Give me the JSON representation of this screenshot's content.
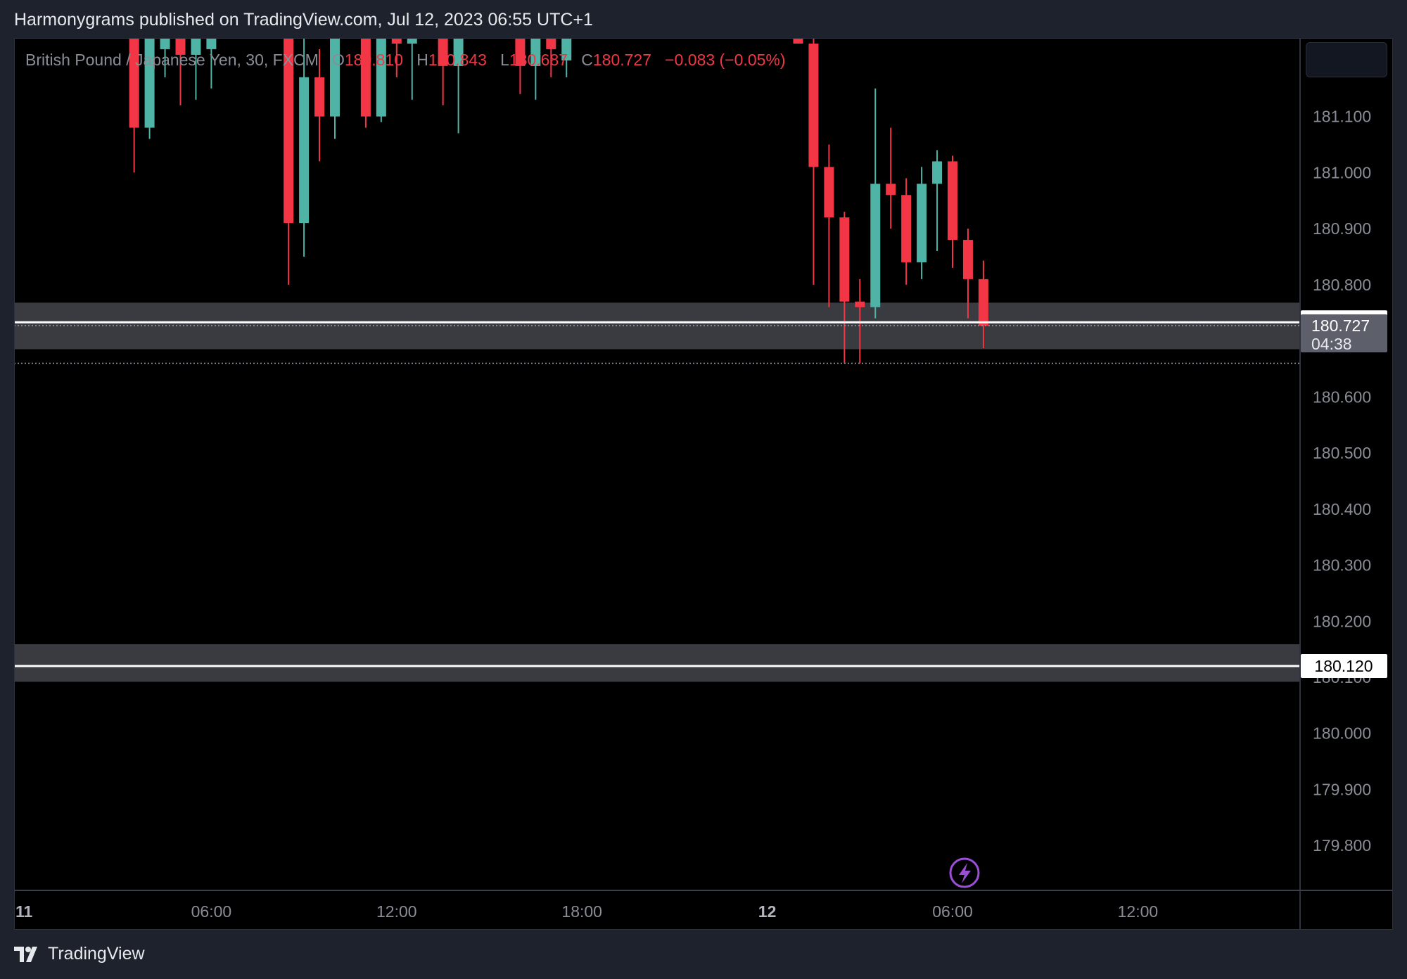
{
  "header": {
    "publisher_line": "Harmonygrams published on TradingView.com, Jul 12, 2023 06:55 UTC+1"
  },
  "legend": {
    "symbol": "British Pound / Japanese Yen, 30, FXCM",
    "open_label": "O",
    "open": "180.810",
    "high_label": "H",
    "high": "180.843",
    "low_label": "L",
    "low": "180.687",
    "close_label": "C",
    "close": "180.727",
    "change": "−0.083 (−0.05%)"
  },
  "footer": {
    "brand": "TradingView"
  },
  "colors": {
    "up": "#4fb3a6",
    "down": "#f23645",
    "zone": "#3a3b40",
    "background": "#000000",
    "axis_text": "#8a8d96"
  },
  "chart_data": {
    "type": "candlestick",
    "symbol": "GBPJPY",
    "timeframe": "30",
    "ylim": [
      179.72,
      181.24
    ],
    "y_ticks": [
      "181.100",
      "181.000",
      "180.900",
      "180.800",
      "180.600",
      "180.500",
      "180.400",
      "180.300",
      "180.200",
      "180.100",
      "180.000",
      "179.900",
      "179.800"
    ],
    "x_ticks": [
      {
        "label": "11",
        "bold": true,
        "index": 0
      },
      {
        "label": "06:00",
        "bold": false,
        "index": 12
      },
      {
        "label": "12:00",
        "bold": false,
        "index": 24
      },
      {
        "label": "18:00",
        "bold": false,
        "index": 36
      },
      {
        "label": "12",
        "bold": true,
        "index": 48
      },
      {
        "label": "06:00",
        "bold": false,
        "index": 60
      },
      {
        "label": "12:00",
        "bold": false,
        "index": 72
      }
    ],
    "candles": [
      {
        "i": 7,
        "o": 181.24,
        "h": 181.26,
        "l": 181.0,
        "c": 181.08
      },
      {
        "i": 8,
        "o": 181.08,
        "h": 181.29,
        "l": 181.06,
        "c": 181.25
      },
      {
        "i": 9,
        "o": 181.22,
        "h": 181.28,
        "l": 181.17,
        "c": 181.25
      },
      {
        "i": 10,
        "o": 181.25,
        "h": 181.29,
        "l": 181.12,
        "c": 181.21
      },
      {
        "i": 11,
        "o": 181.21,
        "h": 181.27,
        "l": 181.13,
        "c": 181.24
      },
      {
        "i": 12,
        "o": 181.22,
        "h": 181.27,
        "l": 181.15,
        "c": 181.25
      },
      {
        "i": 17,
        "o": 181.24,
        "h": 181.27,
        "l": 180.8,
        "c": 180.91
      },
      {
        "i": 18,
        "o": 180.91,
        "h": 181.24,
        "l": 180.85,
        "c": 181.17
      },
      {
        "i": 19,
        "o": 181.17,
        "h": 181.22,
        "l": 181.02,
        "c": 181.1
      },
      {
        "i": 20,
        "o": 181.1,
        "h": 181.28,
        "l": 181.06,
        "c": 181.25
      },
      {
        "i": 22,
        "o": 181.25,
        "h": 181.29,
        "l": 181.08,
        "c": 181.1
      },
      {
        "i": 23,
        "o": 181.1,
        "h": 181.29,
        "l": 181.09,
        "c": 181.25
      },
      {
        "i": 24,
        "o": 181.25,
        "h": 181.27,
        "l": 181.17,
        "c": 181.23
      },
      {
        "i": 25,
        "o": 181.23,
        "h": 181.28,
        "l": 181.13,
        "c": 181.25
      },
      {
        "i": 27,
        "o": 181.25,
        "h": 181.27,
        "l": 181.12,
        "c": 181.19
      },
      {
        "i": 28,
        "o": 181.19,
        "h": 181.27,
        "l": 181.07,
        "c": 181.25
      },
      {
        "i": 32,
        "o": 181.25,
        "h": 181.27,
        "l": 181.14,
        "c": 181.19
      },
      {
        "i": 33,
        "o": 181.19,
        "h": 181.26,
        "l": 181.13,
        "c": 181.25
      },
      {
        "i": 34,
        "o": 181.25,
        "h": 181.27,
        "l": 181.17,
        "c": 181.22
      },
      {
        "i": 35,
        "o": 181.2,
        "h": 181.26,
        "l": 181.17,
        "c": 181.25
      },
      {
        "i": 50,
        "o": 181.25,
        "h": 181.27,
        "l": 181.23,
        "c": 181.23
      },
      {
        "i": 51,
        "o": 181.23,
        "h": 181.25,
        "l": 180.8,
        "c": 181.01
      },
      {
        "i": 52,
        "o": 181.01,
        "h": 181.05,
        "l": 180.76,
        "c": 180.92
      },
      {
        "i": 53,
        "o": 180.92,
        "h": 180.93,
        "l": 180.66,
        "c": 180.77
      },
      {
        "i": 54,
        "o": 180.77,
        "h": 180.81,
        "l": 180.66,
        "c": 180.76
      },
      {
        "i": 55,
        "o": 180.76,
        "h": 181.15,
        "l": 180.74,
        "c": 180.98
      },
      {
        "i": 56,
        "o": 180.98,
        "h": 181.08,
        "l": 180.9,
        "c": 180.96
      },
      {
        "i": 57,
        "o": 180.96,
        "h": 180.99,
        "l": 180.8,
        "c": 180.84
      },
      {
        "i": 58,
        "o": 180.84,
        "h": 181.01,
        "l": 180.81,
        "c": 180.98
      },
      {
        "i": 59,
        "o": 180.98,
        "h": 181.04,
        "l": 180.86,
        "c": 181.02
      },
      {
        "i": 60,
        "o": 181.02,
        "h": 181.03,
        "l": 180.83,
        "c": 180.88
      },
      {
        "i": 61,
        "o": 180.88,
        "h": 180.9,
        "l": 180.74,
        "c": 180.81
      },
      {
        "i": 62,
        "o": 180.81,
        "h": 180.843,
        "l": 180.687,
        "c": 180.727
      }
    ],
    "zones": [
      {
        "top": 180.768,
        "bottom": 180.685
      },
      {
        "top": 180.159,
        "bottom": 180.092
      }
    ],
    "lines": [
      {
        "value": 180.733,
        "label": "180.733"
      },
      {
        "value": 180.12,
        "label": "180.120"
      }
    ],
    "last_price": {
      "value": 180.727,
      "label": "180.727",
      "countdown": "04:38"
    },
    "dotted_level": 180.66
  }
}
